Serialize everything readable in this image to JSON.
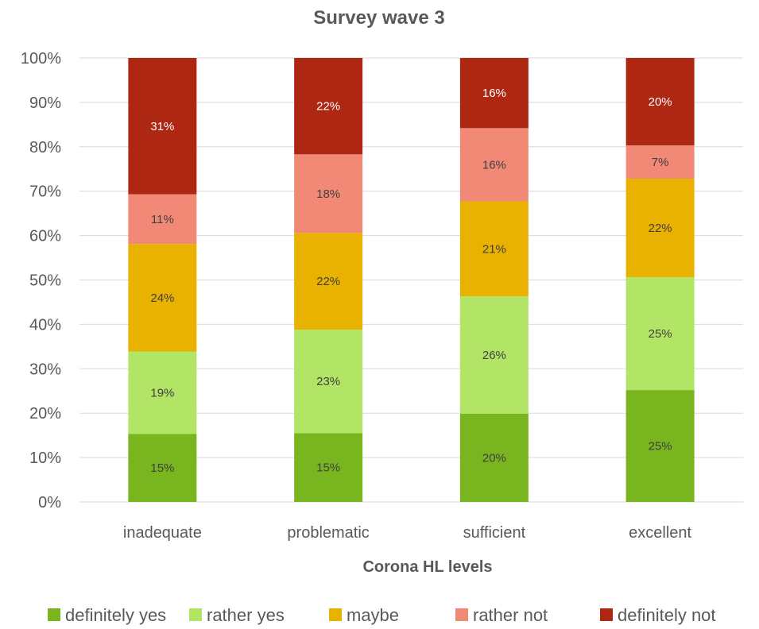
{
  "chart_data": {
    "type": "bar",
    "stacked": true,
    "title": "Survey wave 3",
    "xlabel": "Corona HL levels",
    "ylabel": "",
    "ylim": [
      0,
      100
    ],
    "yticks": [
      "0%",
      "10%",
      "20%",
      "30%",
      "40%",
      "50%",
      "60%",
      "70%",
      "80%",
      "90%",
      "100%"
    ],
    "grid": true,
    "legend_position": "bottom",
    "categories": [
      "inadequate",
      "problematic",
      "sufficient",
      "excellent"
    ],
    "series": [
      {
        "name": "definitely yes",
        "color": "#78b51f",
        "label_color": "#404040",
        "values": [
          15.3,
          15.5,
          19.9,
          25.2
        ],
        "labels": [
          "15%",
          "15%",
          "20%",
          "25%"
        ]
      },
      {
        "name": "rather yes",
        "color": "#b2e566",
        "label_color": "#404040",
        "values": [
          18.6,
          23.3,
          26.4,
          25.4
        ],
        "labels": [
          "19%",
          "23%",
          "26%",
          "25%"
        ]
      },
      {
        "name": "maybe",
        "color": "#e9b100",
        "label_color": "#404040",
        "values": [
          24.2,
          21.8,
          21.4,
          22.2
        ],
        "labels": [
          "24%",
          "22%",
          "21%",
          "22%"
        ]
      },
      {
        "name": "rather not",
        "color": "#f28977",
        "label_color": "#404040",
        "values": [
          11.2,
          17.7,
          16.5,
          7.5
        ],
        "labels": [
          "11%",
          "18%",
          "16%",
          "7%"
        ]
      },
      {
        "name": "definitely not",
        "color": "#ad2712",
        "label_color": "#ffffff",
        "values": [
          30.7,
          21.7,
          15.8,
          19.7
        ],
        "labels": [
          "31%",
          "22%",
          "16%",
          "20%"
        ]
      }
    ]
  }
}
